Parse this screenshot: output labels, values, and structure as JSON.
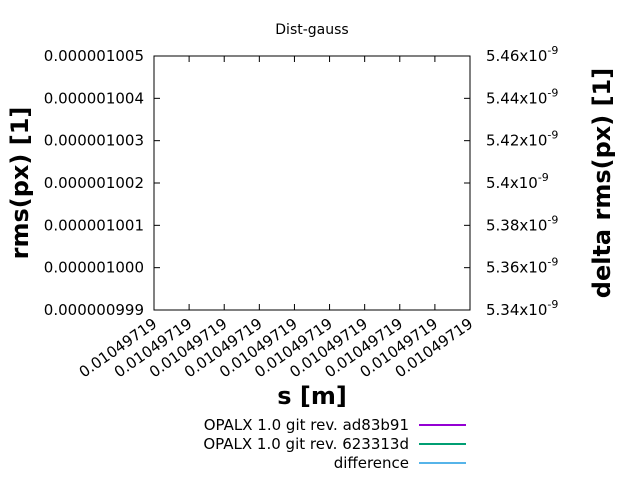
{
  "chart_data": {
    "type": "line",
    "title": "Dist-gauss",
    "xlabel": "s [m]",
    "ylabel": "rms(px) [1]",
    "y2label": "delta rms(px) [1]",
    "x_tick_labels": [
      "0.01049719",
      "0.01049719",
      "0.01049719",
      "0.01049719",
      "0.01049719",
      "0.01049719",
      "0.01049719",
      "0.01049719",
      "0.01049719",
      "0.01049719"
    ],
    "y_tick_labels": [
      "0.000000999",
      "0.000001000",
      "0.000001001",
      "0.000001002",
      "0.000001003",
      "0.000001004",
      "0.000001005"
    ],
    "y2_tick_labels": [
      "5.34x10",
      "5.36x10",
      "5.38x10",
      "5.4x10",
      "5.42x10",
      "5.44x10",
      "5.46x10"
    ],
    "y2_tick_exponent": "-9",
    "ylim": [
      9.99e-07,
      1.005e-06
    ],
    "y2lim": [
      5.34e-09,
      5.46e-09
    ],
    "grid": false,
    "legend_placement": "bottom",
    "series": [
      {
        "name": "OPALX 1.0 git rev. ad83b91",
        "color": "#9400d3",
        "values": []
      },
      {
        "name": "OPALX 1.0 git rev. 623313d",
        "color": "#009e73",
        "values": []
      },
      {
        "name": "difference",
        "color": "#56b4e9",
        "values": []
      }
    ]
  }
}
